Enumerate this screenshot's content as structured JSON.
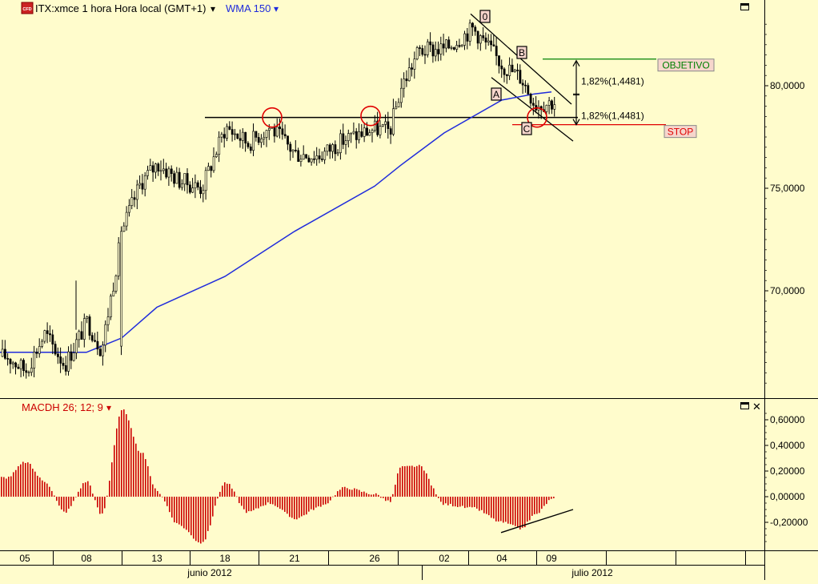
{
  "header": {
    "cfd_badge": "CFD",
    "instrument_label": "ITX:xmce 1 hora Hora local (GMT+1)",
    "dropdown_glyph": "▾",
    "indicator_label": "WMA 150"
  },
  "macd_panel": {
    "label": "MACDH 26; 12; 9",
    "close_glyph": "✕"
  },
  "colors": {
    "background": "#fffccc",
    "candle": "#000000",
    "wma": "#1f2bdc",
    "macd_hist": "#cc0000",
    "objective": "#008000",
    "stop": "#e00000",
    "circle": "#e00000"
  },
  "annotations": {
    "wave_0": "0",
    "wave_a": "A",
    "wave_b": "B",
    "wave_c": "C",
    "objective_label": "OBJETIVO",
    "stop_label": "STOP",
    "pct_upper": "1,82%(1,4481)",
    "pct_lower": "1,82%(1,4481)"
  },
  "x_axis": {
    "day_ticks": [
      "05",
      "08",
      "13",
      "18",
      "21",
      "26",
      "02",
      "04",
      "09"
    ],
    "months": [
      "junio 2012",
      "julio 2012"
    ]
  },
  "chart_data": [
    {
      "type": "line",
      "title": "ITX:xmce 1 hora",
      "y_axis_ticks": [
        "80,0000",
        "75,0000",
        "70,0000"
      ],
      "ylim": [
        65.3,
        84.1
      ],
      "price_path": [
        {
          "date": "2012-06-04",
          "price": 66.8
        },
        {
          "date": "2012-06-05",
          "price": 66.1
        },
        {
          "date": "2012-06-06",
          "price": 67.9
        },
        {
          "date": "2012-06-07",
          "price": 66.4
        },
        {
          "date": "2012-06-08",
          "price": 68.5
        },
        {
          "date": "2012-06-08",
          "price": 67.1
        },
        {
          "date": "2012-06-11",
          "price": 73.0
        },
        {
          "date": "2012-06-12",
          "price": 75.3
        },
        {
          "date": "2012-06-13",
          "price": 76.2
        },
        {
          "date": "2012-06-14",
          "price": 75.4
        },
        {
          "date": "2012-06-15",
          "price": 75.0
        },
        {
          "date": "2012-06-18",
          "price": 78.0
        },
        {
          "date": "2012-06-19",
          "price": 77.2
        },
        {
          "date": "2012-06-20",
          "price": 78.0
        },
        {
          "date": "2012-06-21",
          "price": 76.7
        },
        {
          "date": "2012-06-22",
          "price": 76.6
        },
        {
          "date": "2012-06-25",
          "price": 77.4
        },
        {
          "date": "2012-06-26",
          "price": 77.9
        },
        {
          "date": "2012-06-27",
          "price": 77.8
        },
        {
          "date": "2012-06-28",
          "price": 79.9
        },
        {
          "date": "2012-06-29",
          "price": 81.7
        },
        {
          "date": "2012-07-02",
          "price": 81.8
        },
        {
          "date": "2012-07-03",
          "price": 82.8
        },
        {
          "date": "2012-07-04",
          "price": 81.0
        },
        {
          "date": "2012-07-05",
          "price": 80.4
        },
        {
          "date": "2012-07-06",
          "price": 79.1
        },
        {
          "date": "2012-07-09",
          "price": 79.2
        }
      ],
      "series": [
        {
          "name": "WMA 150",
          "points": [
            {
              "date": "2012-06-04",
              "value": 67.0
            },
            {
              "date": "2012-06-08",
              "value": 67.0
            },
            {
              "date": "2012-06-11",
              "value": 67.7
            },
            {
              "date": "2012-06-13",
              "value": 69.2
            },
            {
              "date": "2012-06-18",
              "value": 70.7
            },
            {
              "date": "2012-06-21",
              "value": 72.9
            },
            {
              "date": "2012-06-26",
              "value": 75.1
            },
            {
              "date": "2012-06-28",
              "value": 76.1
            },
            {
              "date": "2012-07-02",
              "value": 77.7
            },
            {
              "date": "2012-07-04",
              "value": 79.3
            },
            {
              "date": "2012-07-06",
              "value": 79.6
            },
            {
              "date": "2012-07-09",
              "value": 79.7
            }
          ]
        }
      ],
      "levels": [
        {
          "label": "OBJETIVO",
          "value": 81.3
        },
        {
          "label": "",
          "value": 78.45
        },
        {
          "label": "STOP",
          "value": 78.1
        }
      ],
      "grid": false
    },
    {
      "type": "bar",
      "title": "MACDH 26; 12; 9",
      "y_axis_ticks": [
        "0,60000",
        "0,40000",
        "0,20000",
        "0,00000",
        "-0,20000"
      ],
      "ylim": [
        -0.39,
        0.71
      ],
      "histogram": [
        {
          "date": "2012-06-04",
          "value": 0.15
        },
        {
          "date": "2012-06-05",
          "value": 0.27
        },
        {
          "date": "2012-06-06",
          "value": 0.12
        },
        {
          "date": "2012-06-07",
          "value": -0.12
        },
        {
          "date": "2012-06-08",
          "value": 0.12
        },
        {
          "date": "2012-06-08",
          "value": -0.14
        },
        {
          "date": "2012-06-11",
          "value": 0.68
        },
        {
          "date": "2012-06-12",
          "value": 0.35
        },
        {
          "date": "2012-06-13",
          "value": 0.04
        },
        {
          "date": "2012-06-14",
          "value": -0.22
        },
        {
          "date": "2012-06-15",
          "value": -0.36
        },
        {
          "date": "2012-06-18",
          "value": 0.11
        },
        {
          "date": "2012-06-19",
          "value": -0.12
        },
        {
          "date": "2012-06-20",
          "value": -0.05
        },
        {
          "date": "2012-06-21",
          "value": -0.17
        },
        {
          "date": "2012-06-22",
          "value": -0.08
        },
        {
          "date": "2012-06-25",
          "value": 0.07
        },
        {
          "date": "2012-06-26",
          "value": 0.02
        },
        {
          "date": "2012-06-27",
          "value": -0.04
        },
        {
          "date": "2012-06-28",
          "value": 0.23
        },
        {
          "date": "2012-06-29",
          "value": 0.24
        },
        {
          "date": "2012-07-02",
          "value": -0.06
        },
        {
          "date": "2012-07-03",
          "value": -0.09
        },
        {
          "date": "2012-07-04",
          "value": -0.2
        },
        {
          "date": "2012-07-05",
          "value": -0.25
        },
        {
          "date": "2012-07-06",
          "value": -0.14
        },
        {
          "date": "2012-07-09",
          "value": -0.02
        }
      ],
      "grid": false
    }
  ]
}
